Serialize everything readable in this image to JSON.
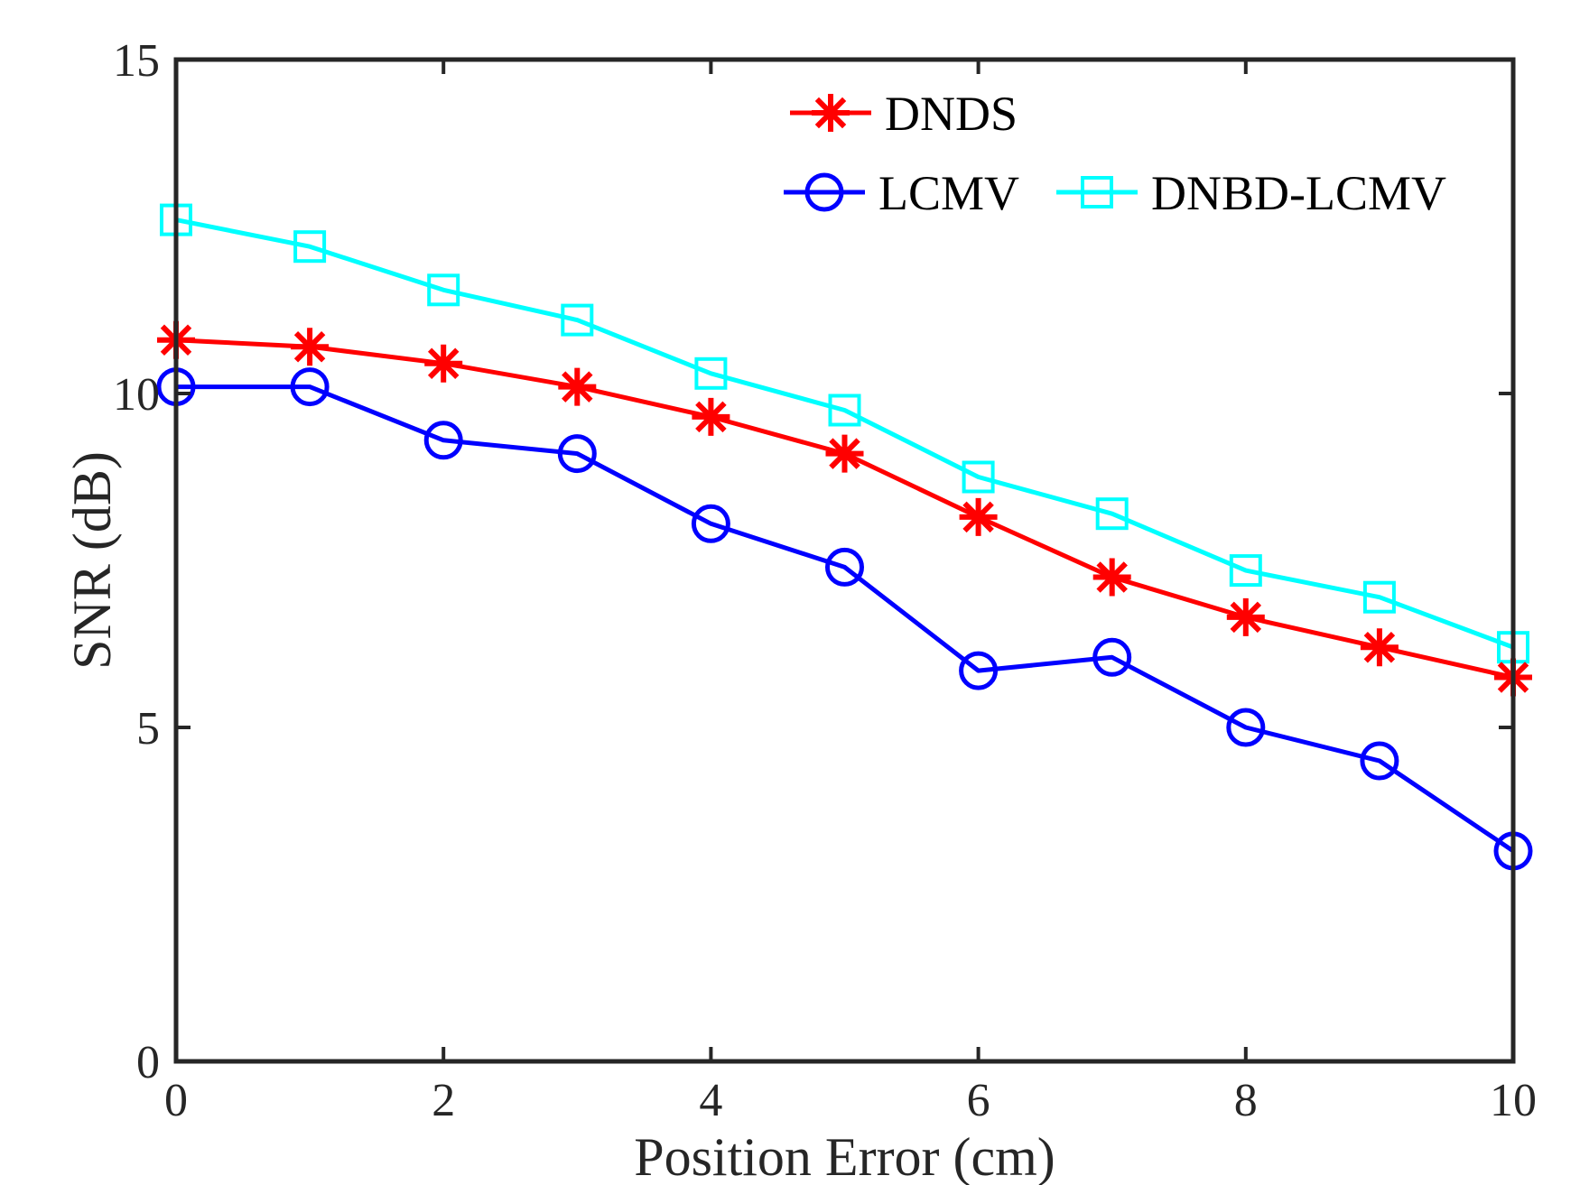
{
  "chart_data": {
    "type": "line",
    "title": "",
    "xlabel": "Position Error (cm)",
    "ylabel": "SNR (dB)",
    "xlim": [
      0,
      10
    ],
    "ylim": [
      0,
      15
    ],
    "xticks": [
      0,
      2,
      4,
      6,
      8,
      10
    ],
    "yticks": [
      0,
      5,
      10,
      15
    ],
    "xtick_labels": [
      "0",
      "2",
      "4",
      "6",
      "8",
      "10"
    ],
    "ytick_labels": [
      "0",
      "5",
      "10",
      "15"
    ],
    "grid": false,
    "legend_position": "top-right",
    "x": [
      0,
      1,
      2,
      3,
      4,
      5,
      6,
      7,
      8,
      9,
      10
    ],
    "series": [
      {
        "name": "DNDS",
        "color": "#ff0000",
        "marker": "asterisk",
        "values": [
          10.8,
          10.7,
          10.45,
          10.1,
          9.65,
          9.1,
          8.15,
          7.25,
          6.65,
          6.2,
          5.75
        ]
      },
      {
        "name": "LCMV",
        "color": "#0000ff",
        "marker": "circle",
        "values": [
          10.1,
          10.1,
          9.3,
          9.1,
          8.05,
          7.4,
          5.85,
          6.05,
          5.0,
          4.5,
          3.15
        ]
      },
      {
        "name": "DNBD-LCMV",
        "color": "#00ffff",
        "marker": "square",
        "values": [
          12.6,
          12.2,
          11.55,
          11.1,
          10.3,
          9.75,
          8.75,
          8.2,
          7.35,
          6.95,
          6.2
        ]
      }
    ]
  }
}
